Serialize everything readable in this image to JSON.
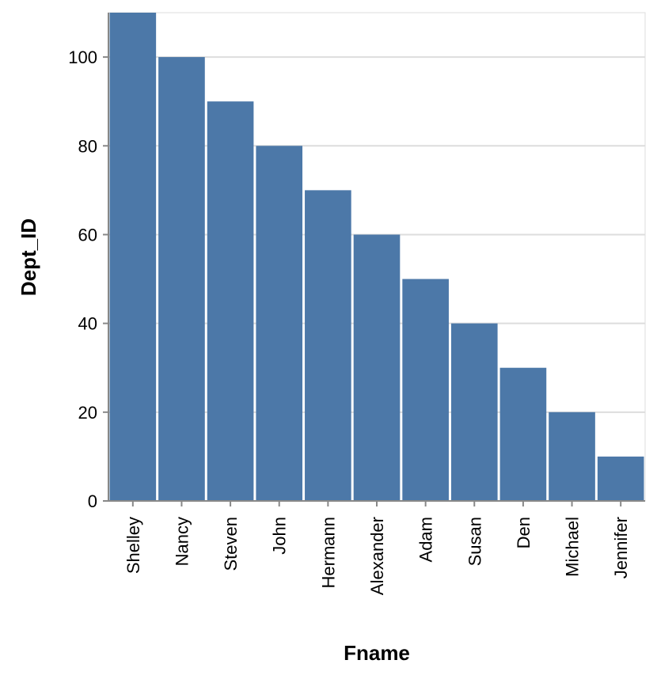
{
  "chart_data": {
    "type": "bar",
    "x_label": "Fname",
    "y_label": "Dept_ID",
    "categories": [
      "Shelley",
      "Nancy",
      "Steven",
      "John",
      "Hermann",
      "Alexander",
      "Adam",
      "Susan",
      "Den",
      "Michael",
      "Jennifer"
    ],
    "values": [
      110,
      100,
      90,
      80,
      70,
      60,
      50,
      40,
      30,
      20,
      10
    ],
    "color": "#4c78a8",
    "ylim": [
      0,
      110
    ],
    "yticks": [
      0,
      20,
      40,
      60,
      80,
      100
    ],
    "grid": true
  }
}
